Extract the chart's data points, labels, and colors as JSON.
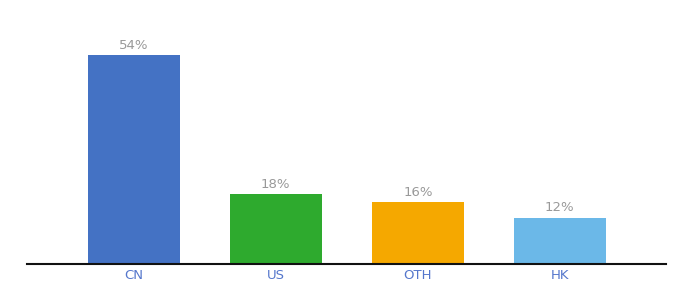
{
  "categories": [
    "CN",
    "US",
    "OTH",
    "HK"
  ],
  "values": [
    54,
    18,
    16,
    12
  ],
  "labels": [
    "54%",
    "18%",
    "16%",
    "12%"
  ],
  "bar_colors": [
    "#4472C4",
    "#2EAA2E",
    "#F5A800",
    "#6BB8E8"
  ],
  "background_color": "#ffffff",
  "ylim": [
    0,
    62
  ],
  "label_fontsize": 9.5,
  "tick_fontsize": 9.5,
  "bar_width": 0.65,
  "label_color": "#999999",
  "tick_color": "#5577CC"
}
